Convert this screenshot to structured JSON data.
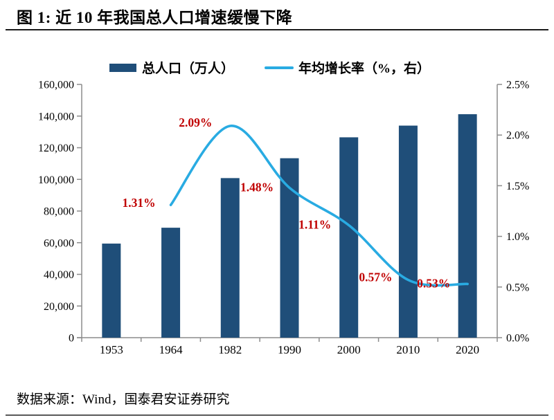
{
  "figure": {
    "title": "图 1: 近 10 年我国总人口增速缓慢下降",
    "source": "数据来源：Wind，国泰君安证券研究"
  },
  "legend": [
    {
      "label": "总人口（万人）",
      "marker": "bar-swatch",
      "color": "#1F4E79"
    },
    {
      "label": "年均增长率（%，右）",
      "marker": "line-swatch",
      "color": "#29ABE2"
    }
  ],
  "chart_data": {
    "type": "bar",
    "title": "图 1: 近 10 年我国总人口增速缓慢下降",
    "categories": [
      "1953",
      "1964",
      "1982",
      "1990",
      "2000",
      "2010",
      "2020"
    ],
    "series": [
      {
        "name": "总人口（万人）",
        "type": "bar",
        "axis": "left",
        "color": "#1F4E79",
        "values": [
          59435,
          69458,
          100818,
          113368,
          126583,
          133972,
          141178
        ]
      },
      {
        "name": "年均增长率（%，右）",
        "type": "line",
        "axis": "right",
        "color": "#29ABE2",
        "values": [
          null,
          1.31,
          2.09,
          1.48,
          1.11,
          0.57,
          0.53
        ],
        "point_labels": [
          null,
          "1.31%",
          "2.09%",
          "1.48%",
          "1.11%",
          "0.57%",
          "0.53%"
        ],
        "label_color": "#C00000"
      }
    ],
    "left_axis": {
      "min": 0,
      "max": 160000,
      "step": 20000,
      "tick_labels": [
        "0",
        "20,000",
        "40,000",
        "60,000",
        "80,000",
        "100,000",
        "120,000",
        "140,000",
        "160,000"
      ]
    },
    "right_axis": {
      "min": 0,
      "max": 2.5,
      "step": 0.5,
      "tick_labels": [
        "0.0%",
        "0.5%",
        "1.0%",
        "1.5%",
        "2.0%",
        "2.5%"
      ]
    },
    "grid": false,
    "legend_position": "top",
    "smooth_line": true
  }
}
